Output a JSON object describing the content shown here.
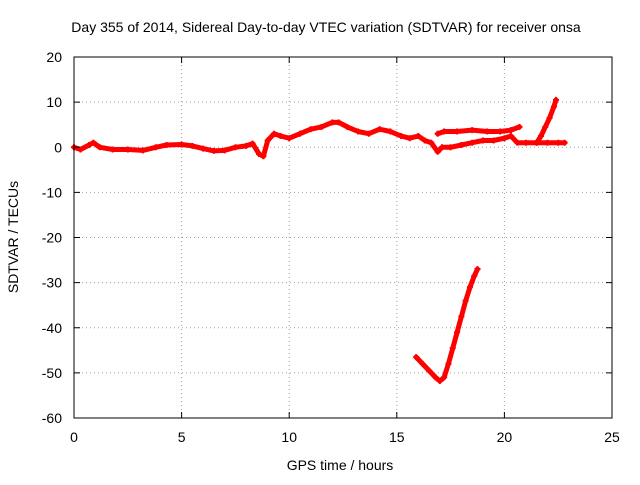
{
  "chart_data": {
    "type": "scatter",
    "title": "Day 355 of 2014, Sidereal Day-to-day VTEC variation (SDTVAR) for receiver onsa",
    "xlabel": "GPS time / hours",
    "ylabel": "SDTVAR / TECUs",
    "xlim": [
      0,
      25
    ],
    "ylim": [
      -60,
      20
    ],
    "xticks": [
      0,
      5,
      10,
      15,
      20,
      25
    ],
    "yticks": [
      -60,
      -50,
      -40,
      -30,
      -20,
      -10,
      0,
      10,
      20
    ],
    "grid": true,
    "legend": "none",
    "color": "#ff0000",
    "series": [
      {
        "values": [
          [
            0.0,
            0.0
          ],
          [
            0.3,
            -0.5
          ],
          [
            0.7,
            0.5
          ],
          [
            0.9,
            1.0
          ],
          [
            1.2,
            0.0
          ],
          [
            1.8,
            -0.5
          ],
          [
            2.5,
            -0.5
          ],
          [
            3.2,
            -0.7
          ],
          [
            3.8,
            0.0
          ],
          [
            4.3,
            0.5
          ],
          [
            5.0,
            0.6
          ],
          [
            5.5,
            0.3
          ],
          [
            6.0,
            -0.3
          ],
          [
            6.5,
            -0.8
          ],
          [
            7.0,
            -0.7
          ],
          [
            7.5,
            0.0
          ],
          [
            8.0,
            0.3
          ],
          [
            8.3,
            0.8
          ],
          [
            8.6,
            -1.5
          ],
          [
            8.8,
            -2.0
          ],
          [
            9.0,
            1.5
          ],
          [
            9.3,
            3.0
          ],
          [
            9.6,
            2.5
          ],
          [
            10.0,
            2.0
          ],
          [
            10.5,
            3.0
          ],
          [
            11.0,
            4.0
          ],
          [
            11.5,
            4.5
          ],
          [
            12.0,
            5.5
          ],
          [
            12.3,
            5.5
          ],
          [
            12.7,
            4.5
          ],
          [
            13.2,
            3.5
          ],
          [
            13.7,
            3.0
          ],
          [
            14.2,
            4.0
          ],
          [
            14.7,
            3.5
          ],
          [
            15.2,
            2.5
          ],
          [
            15.6,
            2.0
          ],
          [
            16.0,
            2.5
          ],
          [
            16.3,
            1.5
          ],
          [
            16.6,
            1.0
          ],
          [
            16.9,
            -1.0
          ],
          [
            17.1,
            0.0
          ],
          [
            17.5,
            0.0
          ],
          [
            18.0,
            0.5
          ],
          [
            18.5,
            1.0
          ],
          [
            19.0,
            1.5
          ],
          [
            19.5,
            1.5
          ],
          [
            20.0,
            2.0
          ],
          [
            20.3,
            2.5
          ],
          [
            20.6,
            1.0
          ],
          [
            21.0,
            1.0
          ],
          [
            21.5,
            1.0
          ],
          [
            22.0,
            1.0
          ],
          [
            22.5,
            1.0
          ],
          [
            22.8,
            1.0
          ]
        ]
      },
      {
        "values": [
          [
            16.9,
            3.0
          ],
          [
            17.2,
            3.5
          ],
          [
            17.8,
            3.5
          ],
          [
            18.5,
            3.8
          ],
          [
            19.2,
            3.5
          ],
          [
            19.8,
            3.5
          ],
          [
            20.3,
            3.8
          ],
          [
            20.7,
            4.5
          ]
        ]
      },
      {
        "values": [
          [
            21.5,
            1.0
          ],
          [
            21.7,
            2.5
          ],
          [
            21.9,
            4.5
          ],
          [
            22.1,
            6.5
          ],
          [
            22.3,
            9.0
          ],
          [
            22.4,
            10.5
          ]
        ]
      },
      {
        "values": [
          [
            15.9,
            -46.5
          ],
          [
            16.2,
            -48.0
          ],
          [
            16.5,
            -49.5
          ],
          [
            16.8,
            -51.0
          ],
          [
            17.0,
            -51.8
          ],
          [
            17.2,
            -51.0
          ],
          [
            17.4,
            -48.0
          ],
          [
            17.6,
            -44.5
          ],
          [
            17.8,
            -41.0
          ],
          [
            18.0,
            -37.5
          ],
          [
            18.2,
            -34.0
          ],
          [
            18.4,
            -31.0
          ],
          [
            18.6,
            -28.5
          ],
          [
            18.75,
            -27.0
          ]
        ]
      }
    ]
  }
}
